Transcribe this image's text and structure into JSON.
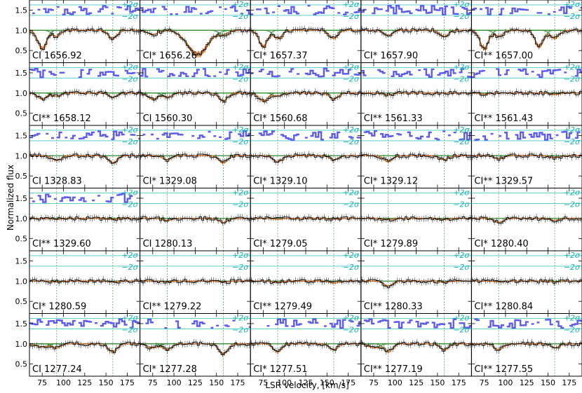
{
  "chart_data": {
    "type": "line",
    "xlabel": "LSR velocity, [km/s]",
    "ylabel": "Normalized flux",
    "xlim": [
      60,
      190
    ],
    "ylim": [
      0.2,
      1.75
    ],
    "xticks": [
      75,
      100,
      125,
      150,
      175
    ],
    "xtick_labels": [
      "75",
      "100",
      "125",
      "150",
      "175"
    ],
    "yticks": [
      0.5,
      1.0,
      1.5
    ],
    "ytick_labels": [
      "0.5",
      "1.0",
      "1.5"
    ],
    "residual_labels": {
      "plus": "+2σ",
      "minus": "−2σ"
    },
    "component_velocities": [
      92,
      158
    ],
    "colors": {
      "data": "#000000",
      "model": "#e6781e",
      "model_fill": "#f5a04a",
      "components": "#2e8b2e",
      "residuals": "#5b5bf0",
      "sigma_lines": "#46c8c8",
      "vlines": "#5aa05a"
    },
    "panels": [
      {
        "label": "CI 1656.92",
        "absorptions": [
          {
            "v": 75,
            "depth": 0.45,
            "w": 5
          },
          {
            "v": 92,
            "depth": 0.15,
            "w": 5
          },
          {
            "v": 158,
            "depth": 0.2,
            "w": 5
          }
        ],
        "residuals": true
      },
      {
        "label": "CI* 1656.26",
        "absorptions": [
          {
            "v": 75,
            "depth": 0.1,
            "w": 6
          },
          {
            "v": 128,
            "depth": 0.6,
            "w": 12
          },
          {
            "v": 158,
            "depth": 0.1,
            "w": 5
          }
        ],
        "residuals": true
      },
      {
        "label": "CI* 1657.37",
        "absorptions": [
          {
            "v": 75,
            "depth": 0.4,
            "w": 5
          },
          {
            "v": 92,
            "depth": 0.2,
            "w": 5
          },
          {
            "v": 158,
            "depth": 0.2,
            "w": 5
          }
        ],
        "residuals": true
      },
      {
        "label": "CI* 1657.90",
        "absorptions": [
          {
            "v": 92,
            "depth": 0.12,
            "w": 5
          },
          {
            "v": 158,
            "depth": 0.15,
            "w": 5
          }
        ],
        "residuals": true
      },
      {
        "label": "CI** 1657.00",
        "absorptions": [
          {
            "v": 75,
            "depth": 0.45,
            "w": 5
          },
          {
            "v": 92,
            "depth": 0.15,
            "w": 5
          },
          {
            "v": 140,
            "depth": 0.4,
            "w": 5
          },
          {
            "v": 158,
            "depth": 0.2,
            "w": 5
          }
        ],
        "residuals": true
      },
      {
        "label": "CI** 1658.12",
        "absorptions": [
          {
            "v": 75,
            "depth": 0.15,
            "w": 5
          },
          {
            "v": 92,
            "depth": 0.08,
            "w": 5
          },
          {
            "v": 158,
            "depth": 0.1,
            "w": 5
          }
        ],
        "residuals": true
      },
      {
        "label": "CI 1560.30",
        "absorptions": [
          {
            "v": 75,
            "depth": 0.15,
            "w": 6
          },
          {
            "v": 92,
            "depth": 0.1,
            "w": 5
          },
          {
            "v": 158,
            "depth": 0.2,
            "w": 5
          }
        ],
        "residuals": true
      },
      {
        "label": "CI* 1560.68",
        "absorptions": [
          {
            "v": 75,
            "depth": 0.2,
            "w": 5
          },
          {
            "v": 92,
            "depth": 0.08,
            "w": 5
          },
          {
            "v": 158,
            "depth": 0.15,
            "w": 5
          }
        ],
        "residuals": true
      },
      {
        "label": "CI** 1561.33",
        "absorptions": [
          {
            "v": 92,
            "depth": 0.05,
            "w": 5
          }
        ],
        "residuals": true
      },
      {
        "label": "CI** 1561.43",
        "absorptions": [
          {
            "v": 75,
            "depth": 0.03,
            "w": 5
          },
          {
            "v": 158,
            "depth": 0.04,
            "w": 5
          }
        ],
        "residuals": true
      },
      {
        "label": "CI 1328.83",
        "absorptions": [
          {
            "v": 92,
            "depth": 0.12,
            "w": 5
          },
          {
            "v": 158,
            "depth": 0.18,
            "w": 5
          }
        ],
        "residuals": true
      },
      {
        "label": "CI* 1329.08",
        "absorptions": [
          {
            "v": 92,
            "depth": 0.1,
            "w": 5
          },
          {
            "v": 158,
            "depth": 0.18,
            "w": 5
          }
        ],
        "residuals": true
      },
      {
        "label": "CI* 1329.10",
        "absorptions": [
          {
            "v": 92,
            "depth": 0.15,
            "w": 5
          },
          {
            "v": 158,
            "depth": 0.1,
            "w": 5
          }
        ],
        "residuals": true
      },
      {
        "label": "CI* 1329.12",
        "absorptions": [
          {
            "v": 92,
            "depth": 0.15,
            "w": 5
          },
          {
            "v": 158,
            "depth": 0.1,
            "w": 5
          }
        ],
        "residuals": true
      },
      {
        "label": "CI** 1329.57",
        "absorptions": [
          {
            "v": 92,
            "depth": 0.08,
            "w": 5
          },
          {
            "v": 158,
            "depth": 0.05,
            "w": 5
          }
        ],
        "residuals": true
      },
      {
        "label": "CI** 1329.60",
        "absorptions": [
          {
            "v": 92,
            "depth": 0.02,
            "w": 5
          },
          {
            "v": 158,
            "depth": 0.02,
            "w": 5
          }
        ],
        "residuals": true
      },
      {
        "label": "CI 1280.13",
        "absorptions": [
          {
            "v": 92,
            "depth": 0.05,
            "w": 5
          },
          {
            "v": 158,
            "depth": 0.1,
            "w": 5
          }
        ],
        "residuals": false
      },
      {
        "label": "CI* 1279.05",
        "absorptions": [
          {
            "v": 92,
            "depth": 0.02,
            "w": 5
          },
          {
            "v": 158,
            "depth": 0.02,
            "w": 5
          }
        ],
        "residuals": false
      },
      {
        "label": "CI* 1279.89",
        "absorptions": [
          {
            "v": 92,
            "depth": 0.03,
            "w": 5
          },
          {
            "v": 158,
            "depth": 0.03,
            "w": 5
          }
        ],
        "residuals": false
      },
      {
        "label": "CI* 1280.40",
        "absorptions": [
          {
            "v": 92,
            "depth": 0.1,
            "w": 5
          },
          {
            "v": 158,
            "depth": 0.05,
            "w": 5
          }
        ],
        "residuals": false
      },
      {
        "label": "CI* 1280.59",
        "absorptions": [
          {
            "v": 92,
            "depth": 0.02,
            "w": 5
          },
          {
            "v": 158,
            "depth": 0.02,
            "w": 5
          }
        ],
        "residuals": false
      },
      {
        "label": "CI** 1279.22",
        "absorptions": [
          {
            "v": 92,
            "depth": 0.02,
            "w": 5
          },
          {
            "v": 158,
            "depth": 0.02,
            "w": 5
          }
        ],
        "residuals": false
      },
      {
        "label": "CI** 1279.49",
        "absorptions": [
          {
            "v": 92,
            "depth": 0.03,
            "w": 5
          },
          {
            "v": 158,
            "depth": 0.05,
            "w": 5
          }
        ],
        "residuals": false
      },
      {
        "label": "CI** 1280.33",
        "absorptions": [
          {
            "v": 92,
            "depth": 0.12,
            "w": 5
          },
          {
            "v": 158,
            "depth": 0.03,
            "w": 5
          }
        ],
        "residuals": false
      },
      {
        "label": "CI** 1280.84",
        "absorptions": [
          {
            "v": 92,
            "depth": 0.02,
            "w": 5
          },
          {
            "v": 158,
            "depth": 0.02,
            "w": 5
          }
        ],
        "residuals": false
      },
      {
        "label": "CI 1277.24",
        "absorptions": [
          {
            "v": 75,
            "depth": 0.08,
            "w": 6
          },
          {
            "v": 92,
            "depth": 0.1,
            "w": 5
          },
          {
            "v": 158,
            "depth": 0.2,
            "w": 5
          }
        ],
        "residuals": true
      },
      {
        "label": "CI* 1277.28",
        "absorptions": [
          {
            "v": 75,
            "depth": 0.1,
            "w": 6
          },
          {
            "v": 92,
            "depth": 0.15,
            "w": 5
          },
          {
            "v": 158,
            "depth": 0.25,
            "w": 5
          }
        ],
        "residuals": true
      },
      {
        "label": "CI* 1277.51",
        "absorptions": [
          {
            "v": 92,
            "depth": 0.2,
            "w": 5
          },
          {
            "v": 158,
            "depth": 0.15,
            "w": 5
          }
        ],
        "residuals": true
      },
      {
        "label": "CI** 1277.19",
        "absorptions": [
          {
            "v": 75,
            "depth": 0.1,
            "w": 6
          },
          {
            "v": 92,
            "depth": 0.2,
            "w": 5
          },
          {
            "v": 158,
            "depth": 0.15,
            "w": 5
          }
        ],
        "residuals": true
      },
      {
        "label": "CI** 1277.55",
        "absorptions": [
          {
            "v": 92,
            "depth": 0.15,
            "w": 5
          },
          {
            "v": 158,
            "depth": 0.1,
            "w": 5
          }
        ],
        "residuals": true
      }
    ]
  }
}
